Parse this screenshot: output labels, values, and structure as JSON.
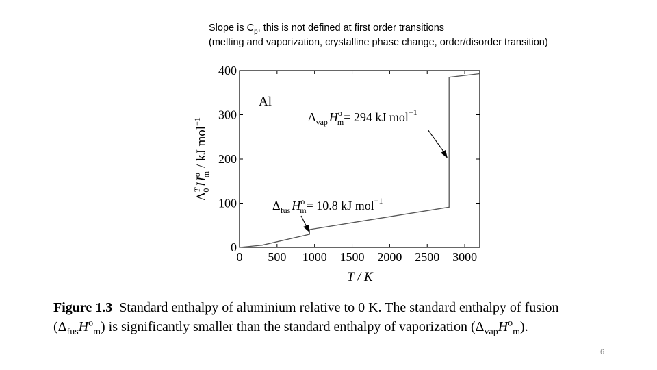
{
  "note": {
    "line1_prefix": "Slope is C",
    "line1_sub": "p",
    "line1_suffix": ", this is not defined at first order transitions",
    "line2": "(melting  and vaporization, crystalline phase change, order/disorder transition)"
  },
  "chart_data": {
    "type": "line",
    "xlabel": "T / K",
    "ylabel": "Δ_0^T H_m^o / kJ mol^-1",
    "xlim": [
      0,
      3200
    ],
    "ylim": [
      0,
      400
    ],
    "x_ticks": [
      0,
      500,
      1000,
      1500,
      2000,
      2500,
      3000
    ],
    "y_ticks": [
      0,
      100,
      200,
      300,
      400
    ],
    "grid": false,
    "series": [
      {
        "points": [
          [
            0,
            0
          ],
          [
            300,
            5
          ],
          [
            933,
            29.5
          ],
          [
            933,
            40.3
          ],
          [
            2792,
            91
          ],
          [
            2792,
            385
          ],
          [
            3200,
            393
          ]
        ]
      }
    ],
    "inner_label": "Al",
    "annotations": [
      {
        "id": "vap",
        "text": "Δ_vap H_m^o = 294 kJ mol^-1",
        "target_x": 2792,
        "target_y": 205
      },
      {
        "id": "fus",
        "text": "Δ_fus H_m^o = 10.8 kJ mol^-1",
        "target_x": 933,
        "target_y": 30
      }
    ]
  },
  "chart_text": {
    "inner_label": "Al",
    "xlabel": "T / K",
    "y_text": {
      "delta": "Δ",
      "sub0": "0",
      "supT": "T",
      "H": "H",
      "o": "o",
      "m": "m",
      "unit": " / kJ mol",
      "minus1": "−1"
    },
    "vap": {
      "delta": "Δ",
      "sub": "vap",
      "H": "H",
      "o": "o",
      "m": "m",
      "value": "= 294 kJ mol",
      "exp": "−1"
    },
    "fus": {
      "delta": "Δ",
      "sub": "fus",
      "H": "H",
      "o": "o",
      "m": "m",
      "value": "= 10.8 kJ mol",
      "exp": "−1"
    }
  },
  "caption": {
    "label": "Figure 1.3",
    "line1_text": "Standard enthalpy of aluminium relative to 0 K. The standard enthalpy of fusion",
    "line2_a": "(Δ",
    "line2_sub1": "fus",
    "line2_H1": "H",
    "line2_sup1": "o",
    "line2_sub1b": "m",
    "line2_b": ") is significantly smaller than the standard enthalpy of vaporization (Δ",
    "line2_sub2": "vap",
    "line2_H2": "H",
    "line2_sup2": "o",
    "line2_sub2b": "m",
    "line2_c": ")."
  },
  "slide_number": "6"
}
